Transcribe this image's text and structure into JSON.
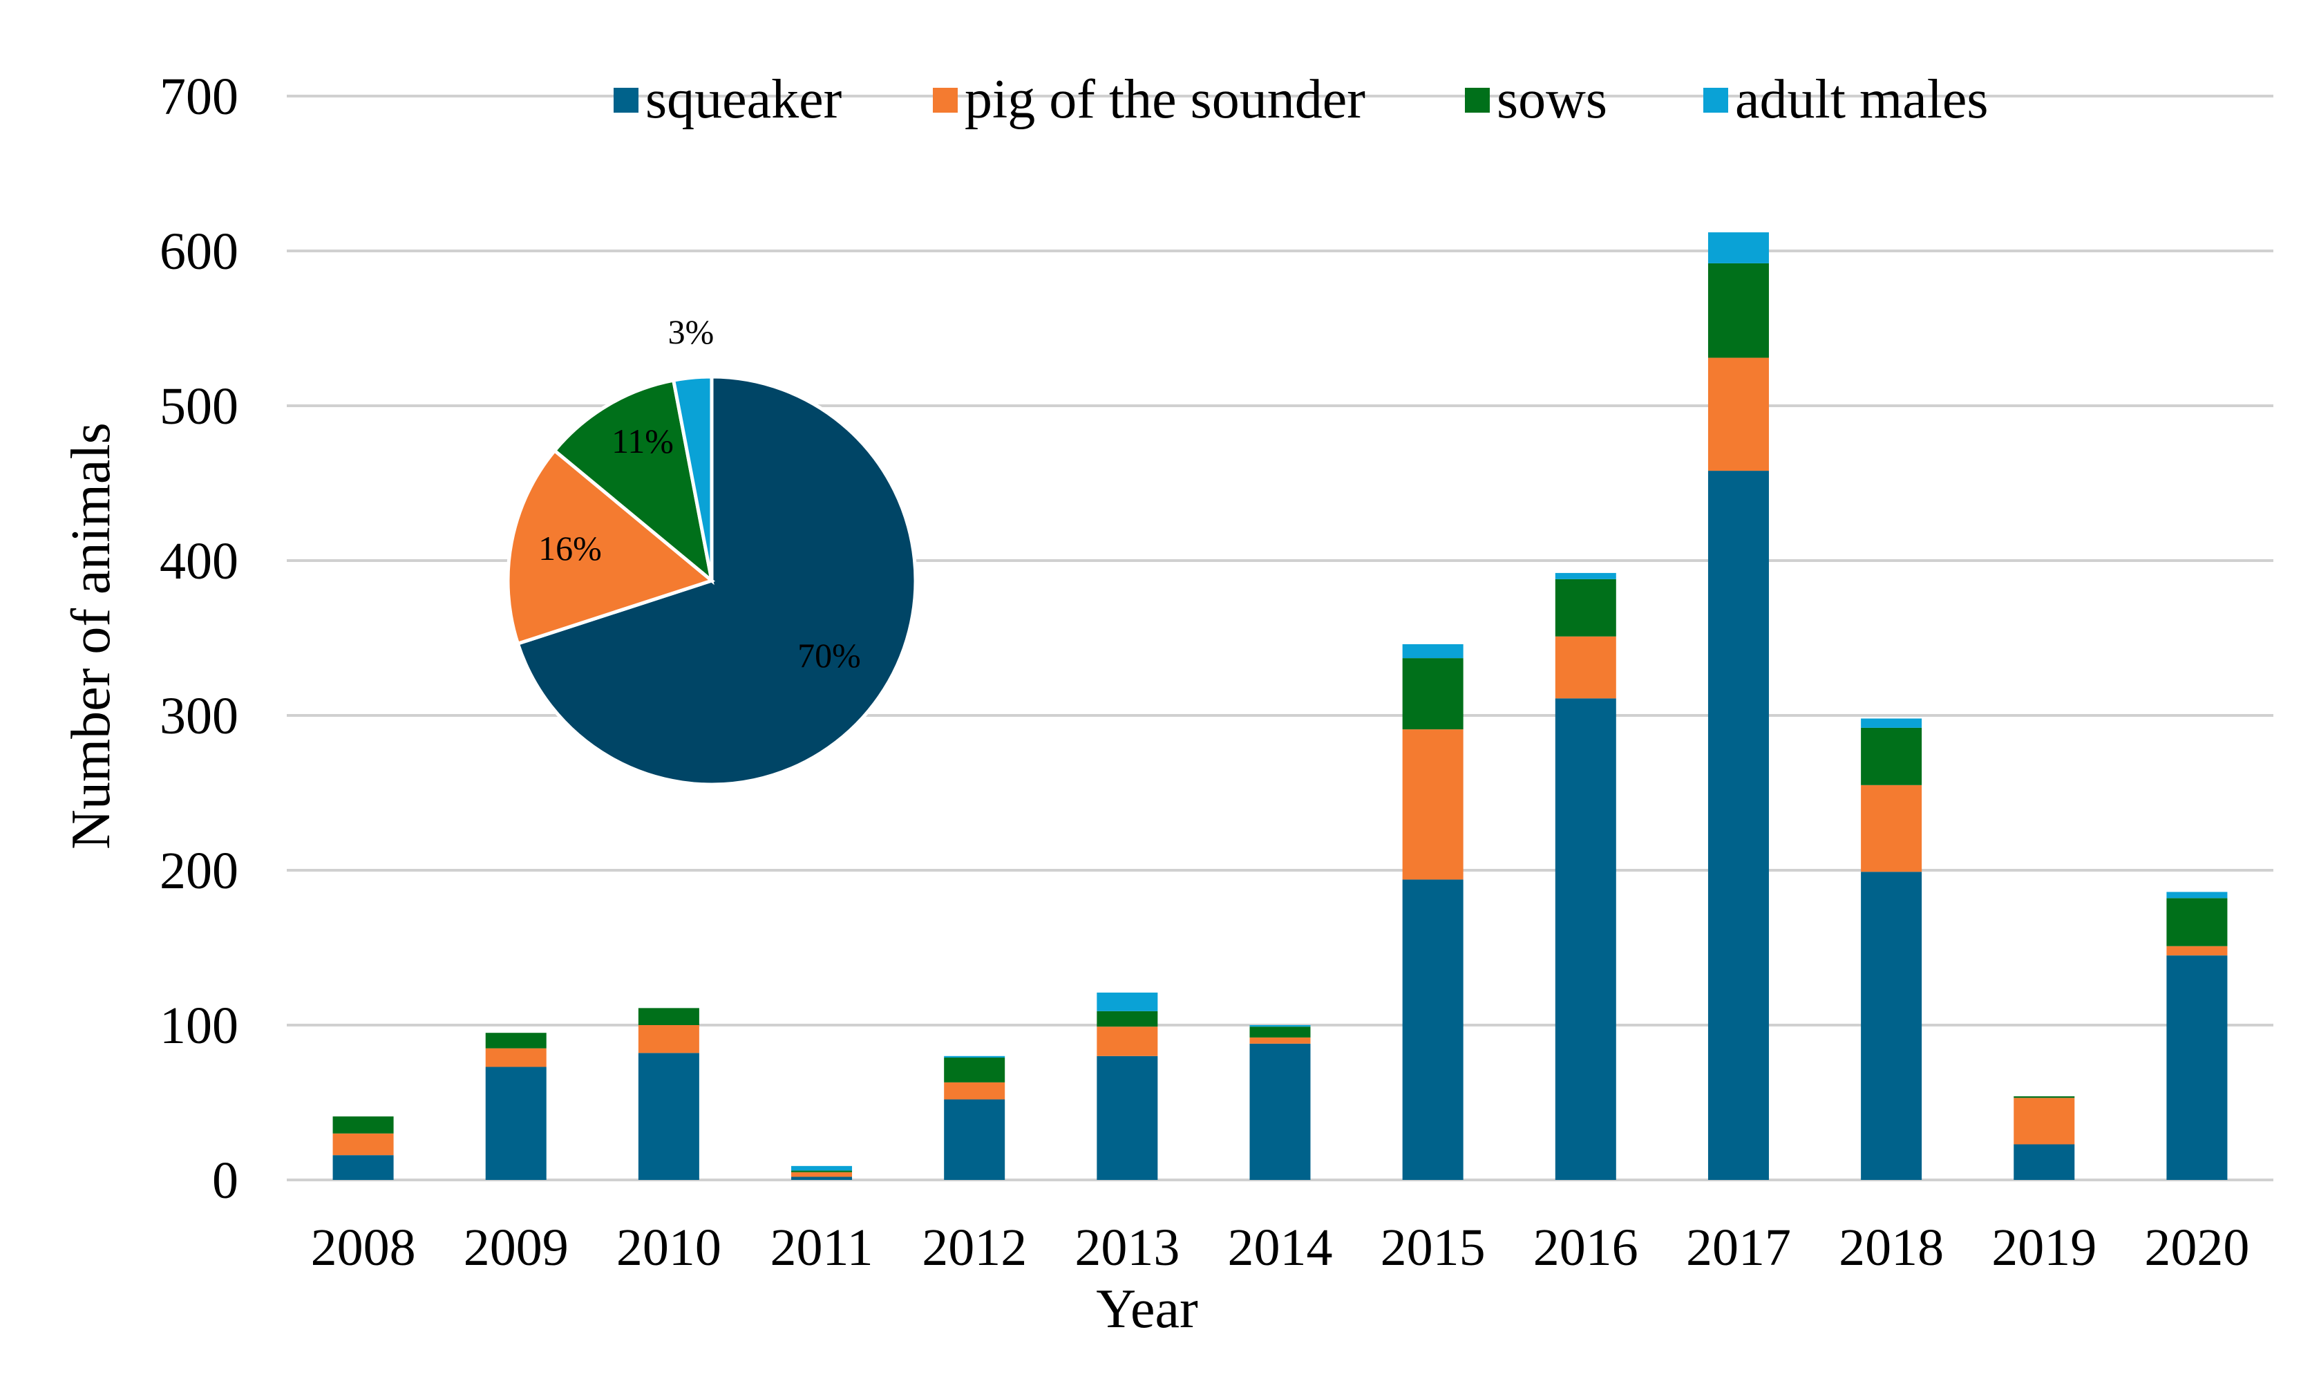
{
  "chart_data": [
    {
      "type": "bar",
      "stacked": true,
      "title": "",
      "xlabel": "Year",
      "ylabel": "Number of animals",
      "ylim": [
        0,
        700
      ],
      "yticks": [
        0,
        100,
        200,
        300,
        400,
        500,
        600,
        700
      ],
      "ytick_labels": [
        "0",
        "100",
        "200",
        "300",
        "400",
        "500",
        "600",
        "700"
      ],
      "grid": true,
      "legend_position": "top",
      "categories": [
        "2008",
        "2009",
        "2010",
        "2011",
        "2012",
        "2013",
        "2014",
        "2015",
        "2016",
        "2017",
        "2018",
        "2019",
        "2020"
      ],
      "series": [
        {
          "name": "squeaker",
          "color": "#00628B",
          "values": [
            16,
            73,
            82,
            2,
            52,
            80,
            88,
            194,
            311,
            458,
            199,
            23,
            145
          ]
        },
        {
          "name": "pig of the sounder",
          "color": "#F47B30",
          "values": [
            14,
            12,
            18,
            3,
            11,
            19,
            4,
            97,
            40,
            73,
            56,
            30,
            6
          ]
        },
        {
          "name": "sows",
          "color": "#00701A",
          "values": [
            11,
            10,
            11,
            1,
            16,
            10,
            7,
            46,
            37,
            61,
            37,
            1,
            31
          ]
        },
        {
          "name": "adult males",
          "color": "#0AA2D6",
          "values": [
            0,
            0,
            0,
            3,
            1,
            12,
            1,
            9,
            4,
            20,
            6,
            0,
            4
          ]
        }
      ]
    },
    {
      "type": "pie",
      "title": "",
      "slices": [
        {
          "name": "squeaker",
          "value": 70,
          "label": "70%",
          "color": "#004566"
        },
        {
          "name": "pig of the sounder",
          "value": 16,
          "label": "16%",
          "color": "#F47B30"
        },
        {
          "name": "sows",
          "value": 11,
          "label": "11%",
          "color": "#00701A"
        },
        {
          "name": "adult males",
          "value": 3,
          "label": "3%",
          "color": "#0AA2D6"
        }
      ]
    }
  ]
}
